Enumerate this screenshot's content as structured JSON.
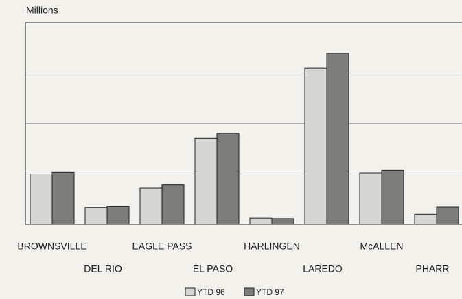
{
  "chart_data": {
    "type": "bar",
    "y_label": "Millions",
    "categories": [
      "BROWNSVILLE",
      "DEL RIO",
      "EAGLE PASS",
      "EL PASO",
      "HARLINGEN",
      "LAREDO",
      "McALLEN",
      "PHARR"
    ],
    "series": [
      {
        "name": "YTD 96",
        "color": "#d6d6d2",
        "values": [
          1.0,
          0.33,
          0.72,
          1.71,
          0.12,
          3.1,
          1.02,
          0.2
        ]
      },
      {
        "name": "YTD 97",
        "color": "#7c7c7a",
        "values": [
          1.03,
          0.35,
          0.78,
          1.8,
          0.11,
          3.39,
          1.07,
          0.34
        ]
      }
    ],
    "ylim": [
      0,
      4
    ],
    "gridlines": [
      1,
      2,
      3
    ],
    "grid": true
  }
}
